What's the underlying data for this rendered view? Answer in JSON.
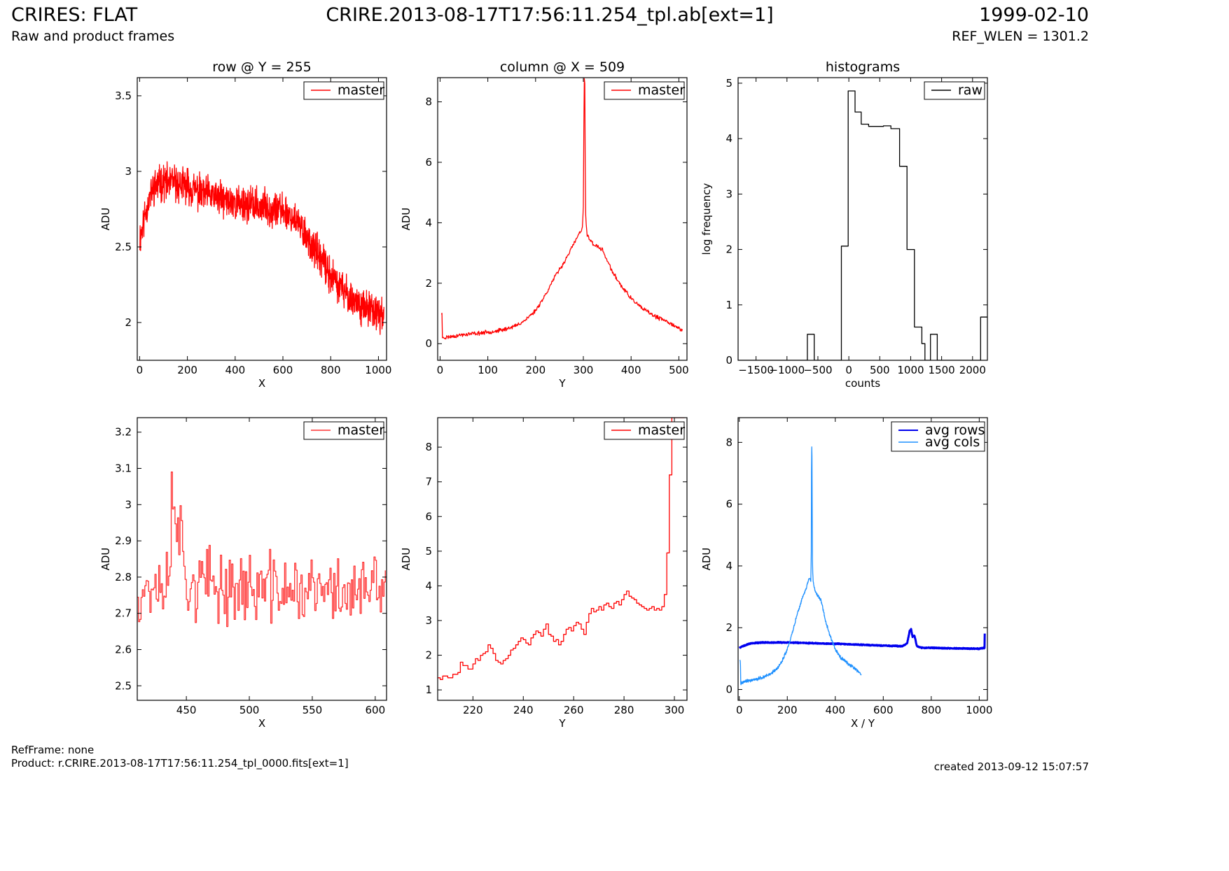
{
  "header": {
    "title": "CRIRES: FLAT",
    "subtitle": "Raw and product frames",
    "filename": "CRIRE.2013-08-17T17:56:11.254_tpl.ab[ext=1]",
    "date": "1999-02-10",
    "ref_wlen": "REF_WLEN = 1301.2"
  },
  "footer": {
    "refframe": "RefFrame: none",
    "product": "Product: r.CRIRE.2013-08-17T17:56:11.254_tpl_0000.fits[ext=1]",
    "created": "created 2013-09-12 15:07:57"
  },
  "colors": {
    "master": "#ff0000",
    "master_zoom": "#ff3333",
    "raw": "#000000",
    "avg_rows": "#0000ee",
    "avg_cols": "#1e90ff"
  },
  "chart_data": [
    {
      "type": "line",
      "title": "row @ Y = 255",
      "xlabel": "X",
      "ylabel": "ADU",
      "xlim": [
        -10,
        1034
      ],
      "ylim": [
        1.75,
        3.62
      ],
      "xticks": [
        0,
        200,
        400,
        600,
        800,
        1000
      ],
      "yticks": [
        2.0,
        2.5,
        3.0,
        3.5
      ],
      "legend": "top-right",
      "series": [
        {
          "name": "master",
          "color": "#ff0000",
          "noise": 0.09,
          "seed": 11,
          "x": [
            0,
            10,
            20,
            40,
            60,
            80,
            100,
            150,
            200,
            250,
            300,
            350,
            400,
            450,
            500,
            550,
            600,
            650,
            700,
            750,
            800,
            850,
            900,
            950,
            1000,
            1023
          ],
          "y": [
            2.55,
            2.62,
            2.7,
            2.82,
            2.9,
            2.92,
            2.93,
            2.92,
            2.9,
            2.86,
            2.84,
            2.81,
            2.79,
            2.78,
            2.77,
            2.76,
            2.74,
            2.68,
            2.57,
            2.44,
            2.31,
            2.21,
            2.14,
            2.09,
            2.06,
            2.05
          ]
        }
      ]
    },
    {
      "type": "line",
      "title": "column @ X = 509",
      "xlabel": "Y",
      "ylabel": "ADU",
      "xlim": [
        -5,
        517
      ],
      "ylim": [
        -0.55,
        8.8
      ],
      "xticks": [
        0,
        100,
        200,
        300,
        400,
        500
      ],
      "yticks": [
        0,
        2,
        4,
        6,
        8
      ],
      "legend": "top-right",
      "series": [
        {
          "name": "master",
          "color": "#ff0000",
          "noise": 0.05,
          "seed": 23,
          "x": [
            3,
            4,
            5,
            6,
            10,
            20,
            50,
            100,
            130,
            160,
            180,
            200,
            220,
            240,
            260,
            280,
            290,
            298,
            300,
            301,
            302,
            303,
            304,
            305,
            306,
            308,
            312,
            320,
            340,
            360,
            380,
            400,
            420,
            450,
            480,
            500,
            508
          ],
          "y": [
            1.0,
            1.0,
            0.15,
            0.22,
            0.2,
            0.23,
            0.3,
            0.38,
            0.45,
            0.6,
            0.8,
            1.1,
            1.6,
            2.2,
            2.7,
            3.3,
            3.6,
            3.8,
            4.5,
            7.0,
            8.8,
            8.6,
            6.0,
            4.2,
            3.9,
            3.6,
            3.5,
            3.3,
            3.1,
            2.4,
            1.9,
            1.5,
            1.2,
            0.9,
            0.7,
            0.5,
            0.45
          ]
        }
      ]
    },
    {
      "type": "line",
      "drawstyle": "steps-post",
      "title": "histograms",
      "xlabel": "counts",
      "ylabel": "log frequency",
      "xlim": [
        -1790,
        2240
      ],
      "ylim": [
        0,
        5.1
      ],
      "xticks": [
        -1500,
        -1000,
        -500,
        0,
        500,
        1000,
        1500,
        2000
      ],
      "yticks": [
        0,
        1,
        2,
        3,
        4,
        5
      ],
      "legend": "top-right",
      "series": [
        {
          "name": "raw",
          "color": "#000000",
          "x": [
            -1790,
            -670,
            -560,
            -120,
            -10,
            100,
            200,
            320,
            560,
            680,
            820,
            940,
            1060,
            1180,
            1230,
            1320,
            1430,
            2130,
            2240
          ],
          "y": [
            0,
            0.47,
            0,
            2.06,
            4.86,
            4.48,
            4.26,
            4.22,
            4.23,
            4.18,
            3.5,
            2.0,
            0.6,
            0.3,
            0,
            0.47,
            0,
            0.78,
            0.78
          ]
        }
      ]
    },
    {
      "type": "line",
      "drawstyle": "steps-post",
      "xlabel": "X",
      "ylabel": "ADU",
      "xlim": [
        411,
        609
      ],
      "ylim": [
        2.46,
        3.24
      ],
      "xticks": [
        450,
        500,
        550,
        600
      ],
      "yticks": [
        2.5,
        2.6,
        2.7,
        2.8,
        2.9,
        3.0,
        3.1,
        3.2
      ],
      "legend": "top-right",
      "series": [
        {
          "name": "master",
          "color": "#ff3333",
          "noise": 0.075,
          "seed": 37,
          "x": [
            411,
            430,
            437,
            438,
            450,
            500,
            550,
            608
          ],
          "y": [
            2.77,
            2.78,
            2.8,
            3.08,
            2.78,
            2.77,
            2.76,
            2.76
          ]
        }
      ]
    },
    {
      "type": "line",
      "drawstyle": "steps-post",
      "xlabel": "Y",
      "ylabel": "ADU",
      "xlim": [
        206,
        305
      ],
      "ylim": [
        0.7,
        8.85
      ],
      "xticks": [
        220,
        240,
        260,
        280,
        300
      ],
      "yticks": [
        1,
        2,
        3,
        4,
        5,
        6,
        7,
        8
      ],
      "legend": "top-right",
      "series": [
        {
          "name": "master",
          "color": "#ff0000",
          "x": [
            206,
            207,
            208,
            210,
            212,
            214,
            215,
            216,
            218,
            220,
            221,
            222,
            223,
            224,
            225,
            226,
            227,
            228,
            229,
            230,
            231,
            232,
            233,
            234,
            235,
            236,
            237,
            238,
            239,
            240,
            241,
            242,
            243,
            244,
            245,
            246,
            247,
            248,
            249,
            250,
            251,
            252,
            253,
            254,
            255,
            256,
            257,
            258,
            259,
            260,
            261,
            262,
            263,
            264,
            265,
            266,
            267,
            268,
            269,
            270,
            271,
            272,
            273,
            274,
            275,
            276,
            277,
            278,
            279,
            280,
            281,
            282,
            283,
            284,
            285,
            286,
            287,
            288,
            289,
            290,
            291,
            292,
            293,
            294,
            295,
            296,
            297,
            298,
            299,
            300,
            301,
            302,
            303,
            304
          ],
          "y": [
            1.35,
            1.3,
            1.4,
            1.35,
            1.45,
            1.5,
            1.8,
            1.7,
            1.6,
            1.75,
            1.9,
            1.85,
            2.0,
            2.05,
            2.1,
            2.3,
            2.2,
            2.05,
            1.85,
            1.8,
            1.75,
            1.85,
            1.9,
            2.0,
            2.15,
            2.2,
            2.3,
            2.4,
            2.5,
            2.45,
            2.35,
            2.3,
            2.5,
            2.6,
            2.7,
            2.65,
            2.55,
            2.75,
            2.9,
            2.6,
            2.55,
            2.4,
            2.45,
            2.3,
            2.4,
            2.6,
            2.75,
            2.8,
            2.7,
            2.85,
            2.95,
            2.9,
            2.75,
            2.6,
            2.95,
            3.2,
            3.35,
            3.25,
            3.3,
            3.4,
            3.3,
            3.45,
            3.5,
            3.4,
            3.35,
            3.5,
            3.55,
            3.45,
            3.6,
            3.75,
            3.85,
            3.7,
            3.65,
            3.6,
            3.5,
            3.45,
            3.4,
            3.35,
            3.3,
            3.35,
            3.4,
            3.3,
            3.35,
            3.3,
            3.4,
            3.75,
            4.95,
            7.2,
            8.85,
            8.85,
            8.85,
            8.85,
            8.85,
            8.85
          ]
        }
      ]
    },
    {
      "type": "line",
      "xlabel": "X / Y",
      "ylabel": "ADU",
      "xlim": [
        -5,
        1034
      ],
      "ylim": [
        -0.35,
        8.8
      ],
      "xticks": [
        0,
        200,
        400,
        600,
        800,
        1000
      ],
      "yticks": [
        0,
        2,
        4,
        6,
        8
      ],
      "legend": "top-right",
      "series": [
        {
          "name": "avg rows",
          "color": "#0000ee",
          "noise": 0.012,
          "seed": 5,
          "width": 3,
          "x": [
            0,
            20,
            50,
            100,
            200,
            300,
            400,
            500,
            600,
            680,
            700,
            710,
            716,
            722,
            730,
            740,
            760,
            800,
            900,
            1000,
            1022,
            1023
          ],
          "y": [
            1.35,
            1.42,
            1.5,
            1.52,
            1.52,
            1.5,
            1.48,
            1.45,
            1.42,
            1.4,
            1.5,
            1.9,
            1.95,
            1.7,
            1.75,
            1.4,
            1.35,
            1.35,
            1.33,
            1.32,
            1.35,
            1.8
          ]
        },
        {
          "name": "avg cols",
          "color": "#1e90ff",
          "noise": 0.04,
          "seed": 9,
          "x": [
            3,
            5,
            6,
            10,
            20,
            50,
            100,
            130,
            160,
            180,
            200,
            220,
            240,
            260,
            280,
            290,
            298,
            300,
            301,
            302,
            303,
            304,
            305,
            306,
            308,
            312,
            320,
            340,
            360,
            380,
            400,
            420,
            450,
            480,
            500,
            508
          ],
          "y": [
            1.0,
            0.8,
            0.2,
            0.22,
            0.25,
            0.3,
            0.4,
            0.5,
            0.7,
            0.95,
            1.3,
            1.8,
            2.4,
            2.9,
            3.3,
            3.6,
            3.5,
            4.5,
            7.0,
            7.85,
            7.6,
            5.5,
            4.2,
            3.8,
            3.5,
            3.3,
            3.1,
            2.9,
            2.2,
            1.7,
            1.3,
            1.05,
            0.85,
            0.7,
            0.55,
            0.5
          ]
        }
      ]
    }
  ]
}
